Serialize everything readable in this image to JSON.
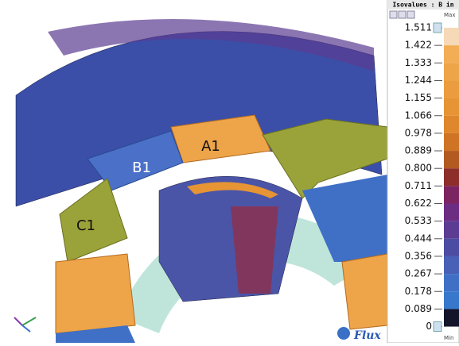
{
  "viewport": {
    "labels": [
      "A1",
      "B1",
      "C1"
    ],
    "logo": "Flux"
  },
  "legend": {
    "title": "Isovalues : B in",
    "max": "Max",
    "min": "Min",
    "values": [
      "1.511",
      "1.422",
      "1.333",
      "1.244",
      "1.155",
      "1.066",
      "0.978",
      "0.889",
      "0.800",
      "0.711",
      "0.622",
      "0.533",
      "0.444",
      "0.356",
      "0.267",
      "0.178",
      "0.089",
      "0"
    ],
    "colors": [
      "#f6d9b6",
      "#f2ad55",
      "#eea448",
      "#eb9c3e",
      "#e69434",
      "#df872c",
      "#cf7424",
      "#b35a22",
      "#8e2e2a",
      "#7c2462",
      "#6c2c82",
      "#5b3c92",
      "#4c4ca2",
      "#4860b6",
      "#3f70c6",
      "#3878cc",
      "#14142a"
    ]
  }
}
